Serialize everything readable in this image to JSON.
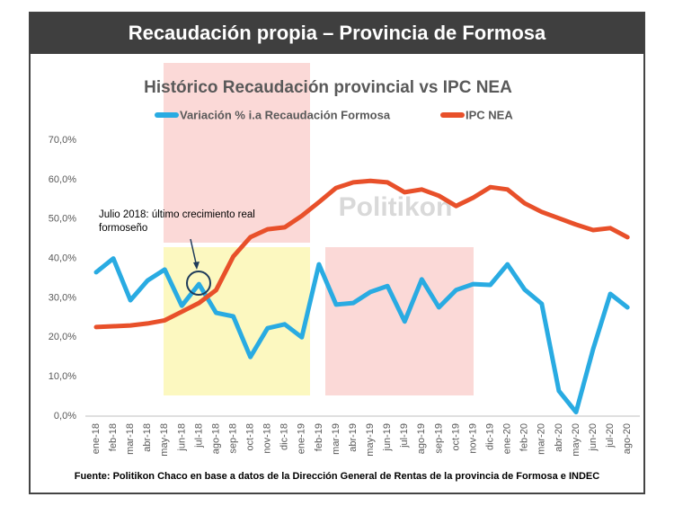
{
  "header": {
    "title": "Recaudación propia – Provincia de Formosa"
  },
  "chart_data": {
    "type": "line",
    "title": "Histórico Recaudación provincial vs IPC NEA",
    "watermark": "Politikon",
    "annotation": "Julio 2018: último crecimiento real formoseño",
    "source": "Fuente: Politikon Chaco en base a datos de la Dirección General de Rentas de la provincia de Formosa e INDEC",
    "categories": [
      "ene-18",
      "feb-18",
      "mar-18",
      "abr-18",
      "may-18",
      "jun-18",
      "jul-18",
      "ago-18",
      "sep-18",
      "oct-18",
      "nov-18",
      "dic-18",
      "ene-19",
      "feb-19",
      "mar-19",
      "abr-19",
      "may-19",
      "jun-19",
      "jul-19",
      "ago-19",
      "sep-19",
      "oct-19",
      "nov-19",
      "dic-19",
      "ene-20",
      "feb-20",
      "mar-20",
      "abr-20",
      "may-20",
      "jun-20",
      "jul-20",
      "ago-20"
    ],
    "series": [
      {
        "name": "Variación % i.a Recaudación Formosa",
        "color": "#29abe2",
        "values": [
          36.5,
          40,
          29.4,
          34.4,
          37.2,
          28,
          33.5,
          26.2,
          25.3,
          15,
          22.3,
          23.3,
          20,
          38.5,
          28.3,
          28.7,
          31.5,
          33,
          24,
          34.7,
          27.6,
          32,
          33.5,
          33.3,
          38.5,
          32.1,
          28.5,
          6.4,
          1,
          17,
          31,
          27.6
        ]
      },
      {
        "name": "IPC NEA",
        "color": "#e8502a",
        "values": [
          22.6,
          22.8,
          23,
          23.5,
          24.3,
          26.5,
          28.7,
          32,
          40.5,
          45.4,
          47.4,
          47.9,
          50.8,
          54.3,
          57.9,
          59.3,
          59.7,
          59.3,
          56.8,
          57.5,
          55.9,
          53.3,
          55.4,
          58.1,
          57.5,
          54,
          51.8,
          50.2,
          48.6,
          47.2,
          47.7,
          45.4
        ]
      }
    ],
    "ylim": [
      0,
      70
    ],
    "yticks": [
      {
        "value": 0,
        "label": "0,0%"
      },
      {
        "value": 10,
        "label": "10,0%"
      },
      {
        "value": 20,
        "label": "20,0%"
      },
      {
        "value": 30,
        "label": "30,0%"
      },
      {
        "value": 40,
        "label": "40,0%"
      },
      {
        "value": 50,
        "label": "50,0%"
      },
      {
        "value": 60,
        "label": "60,0%"
      },
      {
        "value": 70,
        "label": "70,0%"
      }
    ],
    "legend": "top"
  }
}
